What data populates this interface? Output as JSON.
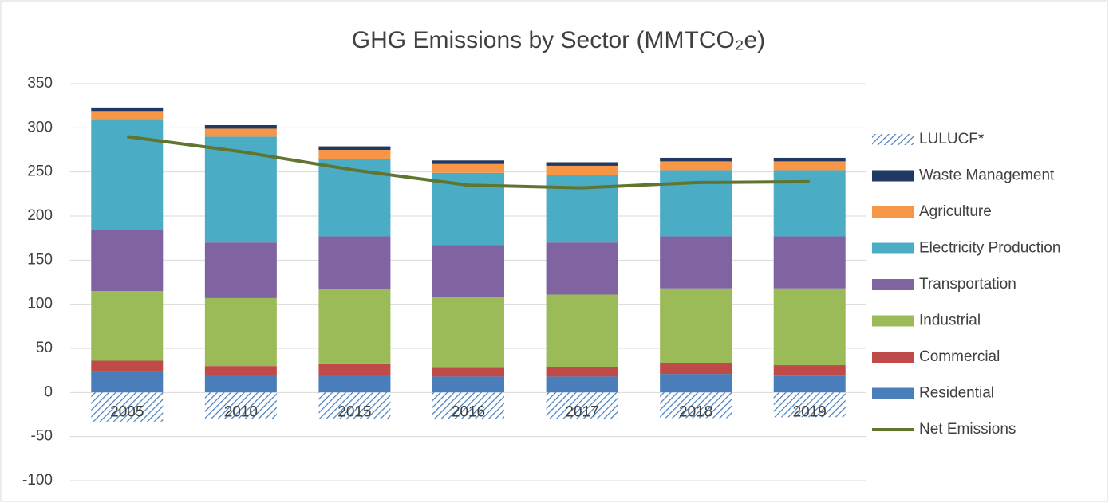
{
  "chart_data": {
    "type": "bar",
    "stacked": true,
    "title": "GHG Emissions by Sector (MMTCO₂e)",
    "categories": [
      "2005",
      "2010",
      "2015",
      "2016",
      "2017",
      "2018",
      "2019"
    ],
    "ylim": [
      -100,
      350
    ],
    "yticks": [
      -100,
      -50,
      0,
      50,
      100,
      150,
      200,
      250,
      300,
      350
    ],
    "grid": true,
    "legend": "right",
    "series": [
      {
        "name": "Residential",
        "color": "#4a7ebb",
        "values": [
          23,
          20,
          20,
          18,
          18,
          21,
          19
        ]
      },
      {
        "name": "Commercial",
        "color": "#be4b48",
        "values": [
          13,
          10,
          12,
          10,
          11,
          12,
          12
        ]
      },
      {
        "name": "Industrial",
        "color": "#9bbb59",
        "values": [
          79,
          77,
          85,
          80,
          82,
          85,
          87
        ]
      },
      {
        "name": "Transportation",
        "color": "#8064a2",
        "values": [
          69,
          63,
          60,
          59,
          59,
          59,
          59
        ]
      },
      {
        "name": "Electricity Production",
        "color": "#4bacc6",
        "values": [
          126,
          120,
          88,
          82,
          77,
          75,
          75
        ]
      },
      {
        "name": "Agriculture",
        "color": "#f79646",
        "values": [
          9,
          9,
          10,
          10,
          10,
          10,
          10
        ]
      },
      {
        "name": "Waste Management",
        "color": "#1f3864",
        "values": [
          4,
          4,
          4,
          4,
          4,
          4,
          4
        ]
      },
      {
        "name": "LULUCF*",
        "color": "#4a7ebb",
        "hatch": true,
        "values": [
          -33,
          -30,
          -30,
          -30,
          -30,
          -29,
          -28
        ]
      },
      {
        "name": "Net Emissions",
        "color": "#5f7530",
        "type": "line",
        "values": [
          290,
          273,
          252,
          235,
          232,
          238,
          239
        ]
      }
    ]
  }
}
